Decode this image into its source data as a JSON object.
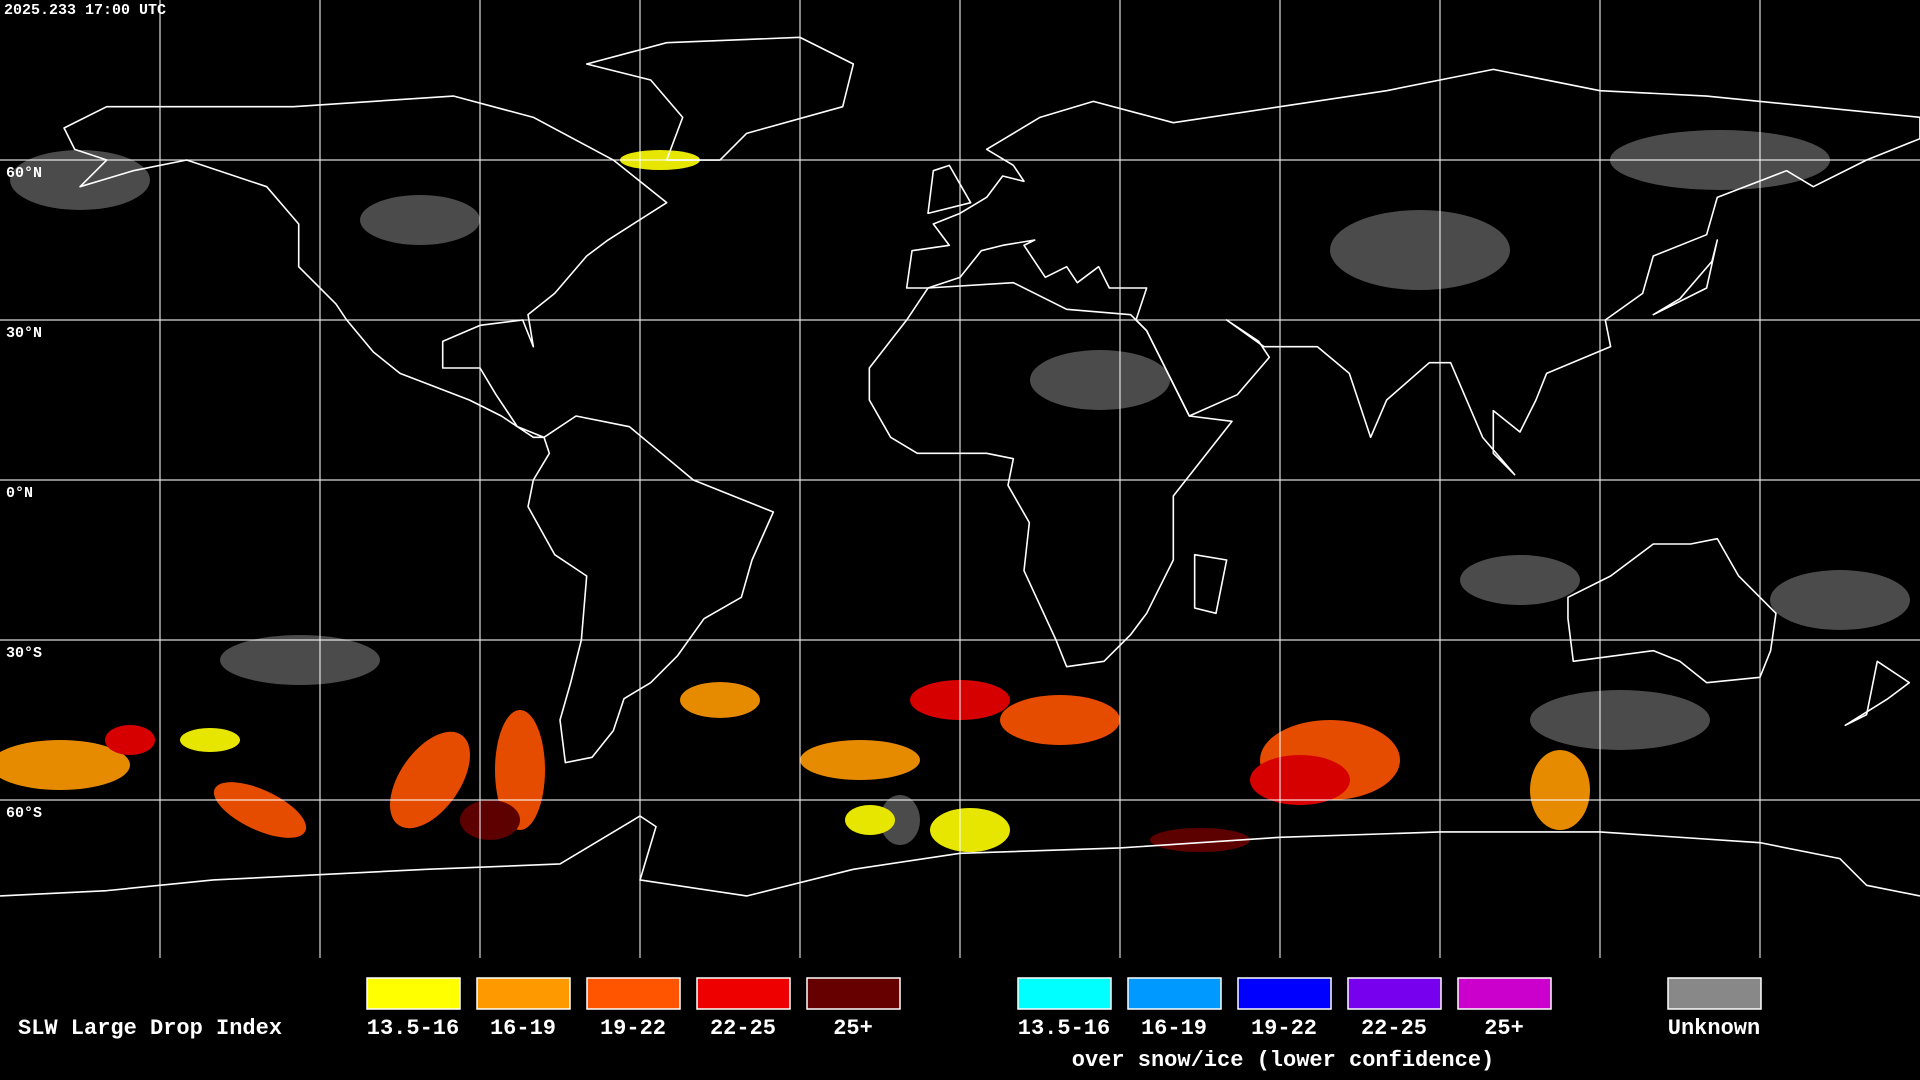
{
  "header": {
    "timestamp": "2025.233 17:00 UTC"
  },
  "latitude_labels": [
    "60°N",
    "30°N",
    "0°N",
    "30°S",
    "60°S"
  ],
  "legend": {
    "title": "SLW Large Drop Index",
    "items": [
      {
        "label": "13.5-16",
        "color": "#ffff00"
      },
      {
        "label": "16-19",
        "color": "#ff9900"
      },
      {
        "label": "19-22",
        "color": "#ff5500"
      },
      {
        "label": "22-25",
        "color": "#ee0000"
      },
      {
        "label": "25+",
        "color": "#660000"
      }
    ],
    "snow_items": [
      {
        "label": "13.5-16",
        "color": "#00ffff"
      },
      {
        "label": "16-19",
        "color": "#0099ff"
      },
      {
        "label": "19-22",
        "color": "#0000ff"
      },
      {
        "label": "22-25",
        "color": "#7700ee"
      },
      {
        "label": "25+",
        "color": "#cc00cc"
      }
    ],
    "snow_note": "over snow/ice (lower confidence)",
    "unknown": {
      "label": "Unknown",
      "color": "#888888"
    }
  }
}
